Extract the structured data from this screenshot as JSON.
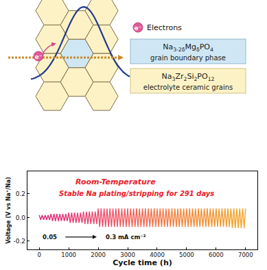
{
  "diagram": {
    "electron_symbol": "e⁻",
    "legend": {
      "electrons": "Electrons",
      "grain_boundary": {
        "formula": [
          {
            "t": "Na"
          },
          {
            "sub": "3-2δ"
          },
          {
            "t": "Mg"
          },
          {
            "sub": "δ"
          },
          {
            "t": "PO"
          },
          {
            "sub": "4"
          }
        ],
        "label": "grain boundary phase"
      },
      "grains": {
        "formula": [
          {
            "t": "Na"
          },
          {
            "sub": "3"
          },
          {
            "t": "Zr"
          },
          {
            "sub": "2"
          },
          {
            "t": "Si"
          },
          {
            "sub": "2"
          },
          {
            "t": "PO"
          },
          {
            "sub": "12"
          }
        ],
        "label": "electrolyte ceramic grains"
      }
    }
  },
  "chart_data": {
    "type": "line",
    "x_label": "Cycle time (h)",
    "y_label": "Voltage (V vs Na⁺/Na)",
    "annotations": [
      "Room-Temperature",
      "Stable Na plating/stripping for 291 days",
      "0.05",
      "0.3 mA cm⁻²"
    ],
    "xlim": [
      -400,
      7400
    ],
    "xticks": [
      0,
      1000,
      2000,
      3000,
      4000,
      5000,
      6000,
      7000
    ],
    "ylim": [
      -0.27,
      0.39
    ],
    "yticks": [
      -0.2,
      {
        "value": 0,
        "label": "0.0"
      },
      0.2
    ],
    "grid": false,
    "x": [
      0,
      50,
      100,
      150,
      200,
      250,
      300,
      350,
      400,
      450,
      500,
      550,
      600,
      650,
      700,
      750,
      800,
      850,
      900,
      950,
      1000,
      1050,
      1100,
      1150,
      1200,
      1250,
      1300,
      1350,
      1400,
      1450,
      1500,
      1550,
      1600,
      1650,
      1700,
      1750,
      1800,
      1850,
      1900,
      1950,
      2000,
      2050,
      2100,
      2150,
      2200,
      2250,
      2300,
      2350,
      2400,
      2450,
      2500,
      2550,
      2600,
      2650,
      2700,
      2750,
      2800,
      2850,
      2900,
      2950,
      3000,
      3050,
      3100,
      3150,
      3200,
      3250,
      3300,
      3350,
      3400,
      3450,
      3500,
      3550,
      3600,
      3650,
      3700,
      3750,
      3800,
      3850,
      3900,
      3950,
      4000,
      4050,
      4100,
      4150,
      4200,
      4250,
      4300,
      4350,
      4400,
      4450,
      4500,
      4550,
      4600,
      4650,
      4700,
      4750,
      4800,
      4850,
      4900,
      4950,
      5000,
      5050,
      5100,
      5150,
      5200,
      5250,
      5300,
      5350,
      5400,
      5450,
      5500,
      5550,
      5600,
      5650,
      5700,
      5750,
      5800,
      5850,
      5900,
      5950,
      6000,
      6050,
      6100,
      6150,
      6200,
      6250,
      6300,
      6350,
      6400,
      6450,
      6500,
      6550,
      6600,
      6650,
      6700,
      6750,
      6800,
      6850,
      6900,
      6950,
      7000
    ],
    "values": [
      0.02,
      -0.02,
      0.02,
      -0.02,
      0.02,
      -0.02,
      0.02,
      -0.02,
      0.03,
      -0.03,
      0.03,
      -0.03,
      0.03,
      -0.03,
      0.03,
      -0.03,
      0.03,
      -0.03,
      0.03,
      -0.03,
      0.04,
      -0.045,
      0.04,
      -0.045,
      0.04,
      -0.045,
      0.04,
      -0.045,
      0.04,
      -0.045,
      0.05,
      -0.055,
      0.05,
      -0.055,
      0.05,
      -0.055,
      0.05,
      -0.055,
      0.05,
      -0.055,
      0.075,
      -0.08,
      0.075,
      -0.08,
      0.075,
      -0.08,
      0.075,
      -0.08,
      0.075,
      -0.08,
      0.075,
      -0.08,
      0.075,
      -0.08,
      0.075,
      -0.08,
      0.075,
      -0.08,
      0.075,
      -0.08,
      0.075,
      -0.08,
      0.075,
      -0.08,
      0.075,
      -0.08,
      0.075,
      -0.08,
      0.075,
      -0.08,
      0.075,
      -0.08,
      0.075,
      -0.08,
      0.075,
      -0.08,
      0.075,
      -0.08,
      0.075,
      -0.08,
      0.075,
      -0.08,
      0.075,
      -0.08,
      0.075,
      -0.08,
      0.075,
      -0.08,
      0.075,
      -0.08,
      0.075,
      -0.08,
      0.075,
      -0.08,
      0.075,
      -0.08,
      0.075,
      -0.08,
      0.075,
      -0.08,
      0.075,
      -0.08,
      0.075,
      -0.08,
      0.075,
      -0.08,
      0.075,
      -0.08,
      0.075,
      -0.08,
      0.075,
      -0.08,
      0.075,
      -0.08,
      0.075,
      -0.08,
      0.075,
      -0.08,
      0.075,
      -0.08,
      0.075,
      -0.08,
      0.075,
      -0.08,
      0.075,
      -0.08,
      0.075,
      -0.08,
      0.075,
      -0.08,
      0.075,
      -0.09,
      0.075,
      -0.09,
      0.075,
      -0.09,
      0.075,
      -0.09,
      0.075,
      -0.09,
      0.075
    ]
  }
}
